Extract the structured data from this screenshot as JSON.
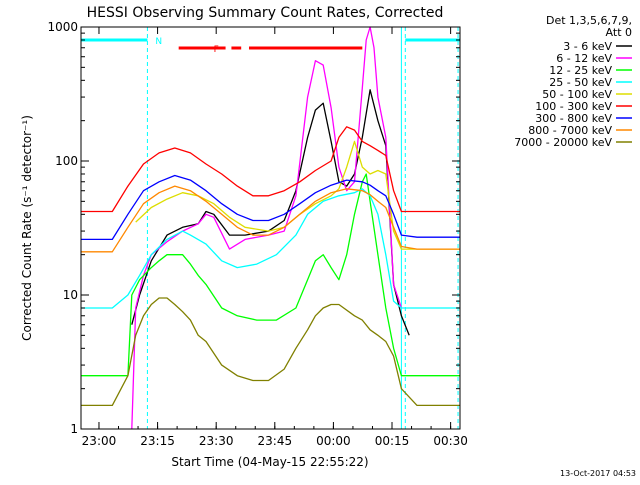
{
  "chart_data": {
    "type": "line",
    "title": "HESSI Observing Summary Count Rates, Corrected",
    "xlabel": "Start Time (04-May-15 22:55:22)",
    "ylabel": "Corrected Count Rate (s⁻¹ detector⁻¹)",
    "x_unit": "minutes since 22:55:22",
    "xlim": [
      0,
      97
    ],
    "ylim": [
      1,
      1000
    ],
    "yscale": "log",
    "x_ticks": [
      {
        "t": 4.6,
        "label": "23:00"
      },
      {
        "t": 19.6,
        "label": "23:15"
      },
      {
        "t": 34.6,
        "label": "23:30"
      },
      {
        "t": 49.6,
        "label": "23:45"
      },
      {
        "t": 64.6,
        "label": "00:00"
      },
      {
        "t": 79.6,
        "label": "00:15"
      },
      {
        "t": 94.6,
        "label": "00:30"
      }
    ],
    "y_ticks": [
      {
        "v": 1,
        "label": "1"
      },
      {
        "v": 10,
        "label": "10"
      },
      {
        "v": 100,
        "label": "100"
      },
      {
        "v": 1000,
        "label": "1000"
      }
    ],
    "legend": {
      "header_line1": "Det 1,3,5,6,7,9,",
      "header_line2": "Att 0",
      "placement": "right"
    },
    "series": [
      {
        "name": "3 - 6 keV",
        "color": "#000000",
        "x": [
          0,
          11,
          13,
          15,
          18,
          22,
          26,
          30,
          32,
          34,
          38,
          42,
          48,
          52,
          55,
          58,
          60,
          62,
          64,
          66,
          68,
          70,
          72,
          74,
          76,
          78,
          80,
          82,
          84,
          86,
          97
        ],
        "y": [
          null,
          null,
          6,
          10,
          18,
          28,
          32,
          34,
          42,
          40,
          28,
          28,
          30,
          36,
          60,
          150,
          240,
          270,
          140,
          70,
          65,
          80,
          150,
          340,
          200,
          130,
          12,
          7,
          5,
          null,
          null
        ]
      },
      {
        "name": "6 - 12 keV",
        "color": "#ff00ff",
        "x": [
          0,
          13,
          14,
          16,
          18,
          22,
          26,
          30,
          32,
          34,
          38,
          42,
          48,
          52,
          55,
          58,
          60,
          62,
          64,
          66,
          68,
          70,
          72,
          73,
          74,
          75,
          76,
          78,
          80,
          82,
          86,
          97
        ],
        "y": [
          null,
          1,
          8,
          14,
          20,
          25,
          30,
          34,
          40,
          38,
          22,
          26,
          28,
          30,
          55,
          300,
          560,
          520,
          250,
          90,
          60,
          70,
          350,
          800,
          1100,
          700,
          300,
          150,
          12,
          8,
          null,
          null
        ]
      },
      {
        "name": "12 - 25 keV",
        "color": "#00ff00",
        "x": [
          0,
          12,
          13,
          15,
          18,
          20,
          22,
          26,
          28,
          30,
          32,
          36,
          40,
          45,
          50,
          55,
          58,
          60,
          62,
          64,
          66,
          68,
          70,
          72,
          73,
          74,
          76,
          78,
          80,
          82,
          86,
          97
        ],
        "y": [
          2.5,
          2.5,
          10,
          13,
          16,
          18,
          20,
          20,
          17,
          14,
          12,
          8,
          7,
          6.5,
          6.5,
          8,
          13,
          18,
          20,
          16,
          13,
          20,
          40,
          70,
          80,
          50,
          20,
          8,
          4,
          2.5,
          2.5,
          2.5
        ]
      },
      {
        "name": "25 - 50 keV",
        "color": "#00ffff",
        "x": [
          0,
          8,
          12,
          15,
          18,
          22,
          26,
          28,
          32,
          36,
          40,
          45,
          50,
          55,
          58,
          62,
          66,
          70,
          72,
          74,
          76,
          78,
          80,
          82,
          86,
          97
        ],
        "y": [
          8,
          8,
          10,
          14,
          20,
          26,
          30,
          28,
          24,
          18,
          16,
          17,
          20,
          28,
          40,
          50,
          55,
          58,
          62,
          55,
          40,
          20,
          9,
          8,
          8,
          8
        ]
      },
      {
        "name": "50 - 100 keV",
        "color": "#dddd00",
        "x": [
          0,
          10,
          14,
          18,
          22,
          26,
          30,
          34,
          38,
          42,
          48,
          52,
          56,
          60,
          64,
          66,
          68,
          70,
          72,
          74,
          76,
          78,
          80,
          82,
          86,
          97
        ],
        "y": [
          null,
          null,
          35,
          45,
          52,
          58,
          55,
          48,
          38,
          32,
          30,
          32,
          40,
          48,
          55,
          62,
          90,
          140,
          90,
          80,
          85,
          80,
          30,
          22,
          22,
          22
        ]
      },
      {
        "name": "100 - 300 keV",
        "color": "#ff0000",
        "x": [
          0,
          8,
          12,
          16,
          20,
          24,
          28,
          32,
          36,
          40,
          44,
          48,
          52,
          56,
          60,
          64,
          66,
          68,
          70,
          72,
          74,
          76,
          78,
          80,
          82,
          86,
          97
        ],
        "y": [
          42,
          42,
          65,
          95,
          115,
          125,
          115,
          95,
          80,
          65,
          55,
          55,
          60,
          70,
          85,
          100,
          150,
          180,
          170,
          140,
          130,
          120,
          110,
          60,
          42,
          42,
          42
        ]
      },
      {
        "name": "300 - 800 keV",
        "color": "#0000ff",
        "x": [
          0,
          8,
          12,
          16,
          20,
          24,
          28,
          32,
          36,
          40,
          44,
          48,
          52,
          56,
          60,
          64,
          68,
          72,
          74,
          76,
          78,
          80,
          82,
          86,
          97
        ],
        "y": [
          26,
          26,
          40,
          60,
          70,
          78,
          72,
          60,
          48,
          40,
          36,
          36,
          40,
          48,
          58,
          66,
          72,
          70,
          66,
          60,
          55,
          40,
          28,
          27,
          27
        ]
      },
      {
        "name": "800 - 7000 keV",
        "color": "#ff8800",
        "x": [
          0,
          8,
          12,
          16,
          20,
          24,
          28,
          32,
          36,
          40,
          44,
          48,
          52,
          56,
          60,
          64,
          68,
          72,
          74,
          76,
          78,
          80,
          82,
          86,
          97
        ],
        "y": [
          21,
          21,
          32,
          48,
          58,
          65,
          60,
          50,
          40,
          32,
          28,
          28,
          32,
          40,
          50,
          58,
          62,
          60,
          56,
          50,
          45,
          32,
          23,
          22,
          22
        ]
      },
      {
        "name": "7000 - 20000 keV",
        "color": "#808000",
        "x": [
          0,
          8,
          12,
          14,
          16,
          18,
          20,
          22,
          24,
          26,
          28,
          30,
          32,
          36,
          40,
          44,
          48,
          52,
          55,
          58,
          60,
          62,
          64,
          66,
          70,
          72,
          74,
          76,
          78,
          80,
          82,
          86,
          97
        ],
        "y": [
          1.5,
          1.5,
          2.5,
          5,
          7,
          8.5,
          9.5,
          9.5,
          8.5,
          7.5,
          6.5,
          5,
          4.5,
          3,
          2.5,
          2.3,
          2.3,
          2.8,
          4,
          5.5,
          7,
          8,
          8.5,
          8.5,
          7,
          6.5,
          5.5,
          5,
          4.5,
          3.5,
          2,
          1.5,
          1.5
        ]
      }
    ],
    "flags": [
      {
        "name": "N",
        "color": "#00ffff",
        "segments": [
          [
            0,
            17
          ],
          [
            83,
            97
          ]
        ]
      },
      {
        "name": "F",
        "color": "#ff0000",
        "segments": [
          [
            25,
            37
          ],
          [
            38.5,
            41
          ],
          [
            43,
            72
          ]
        ]
      }
    ],
    "vertical_markers": [
      {
        "t": 17,
        "color": "#00ffff",
        "style": "dashed"
      },
      {
        "t": 82,
        "color": "#00ffff",
        "style": "solid"
      },
      {
        "t": 83,
        "color": "#00ffff",
        "style": "dashed"
      },
      {
        "t": 96.5,
        "color": "#00ffff",
        "style": "dashed"
      }
    ],
    "grid": false
  },
  "footer": {
    "timestamp": "13-Oct-2017 04:53"
  }
}
